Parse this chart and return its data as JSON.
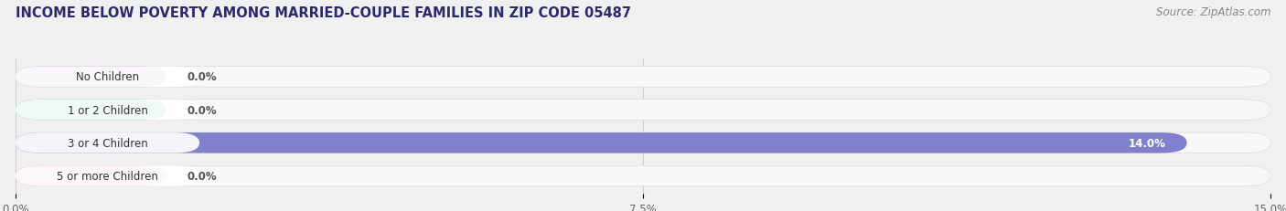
{
  "title": "INCOME BELOW POVERTY AMONG MARRIED-COUPLE FAMILIES IN ZIP CODE 05487",
  "source": "Source: ZipAtlas.com",
  "categories": [
    "No Children",
    "1 or 2 Children",
    "3 or 4 Children",
    "5 or more Children"
  ],
  "values": [
    0.0,
    0.0,
    14.0,
    0.0
  ],
  "bar_colors": [
    "#c5a8d4",
    "#5bbfb5",
    "#8080cc",
    "#f4a0b8"
  ],
  "label_bg_colors": [
    "#f0e6f6",
    "#e0f5f3",
    "#e8e8f8",
    "#fce8f0"
  ],
  "value_label_colors": [
    "#666666",
    "#666666",
    "#ffffff",
    "#666666"
  ],
  "xlim": [
    0,
    15.0
  ],
  "xticks": [
    0.0,
    7.5,
    15.0
  ],
  "xtick_labels": [
    "0.0%",
    "7.5%",
    "15.0%"
  ],
  "background_color": "#f0f0f0",
  "bar_bg_color": "#ebebeb",
  "bar_outer_bg": "#f8f8f8",
  "title_fontsize": 10.5,
  "source_fontsize": 8.5,
  "bar_height": 0.62,
  "label_fontsize": 8.5,
  "tick_fontsize": 8.5,
  "small_bar_width": 1.8
}
